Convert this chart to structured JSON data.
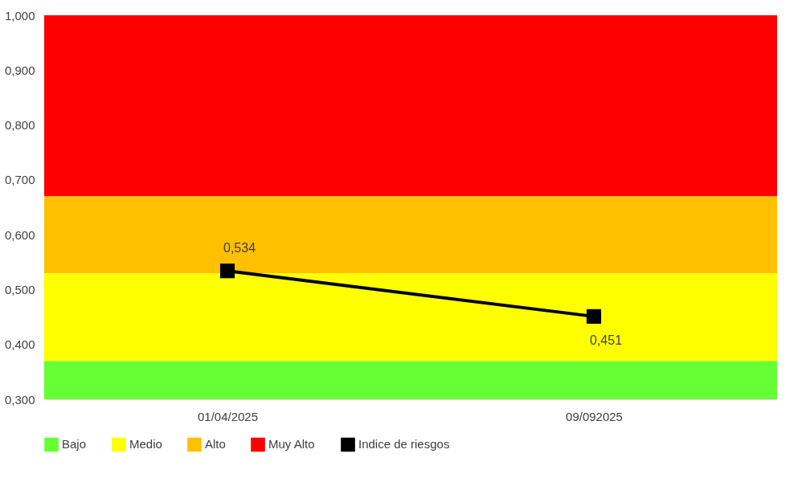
{
  "chart_data": {
    "type": "line",
    "categories": [
      "01/04/2025",
      "09/092025"
    ],
    "ylim": [
      0.3,
      1.0
    ],
    "yticks": [
      {
        "value": 0.3,
        "label": "0,300"
      },
      {
        "value": 0.4,
        "label": "0,400"
      },
      {
        "value": 0.5,
        "label": "0,500"
      },
      {
        "value": 0.6,
        "label": "0,600"
      },
      {
        "value": 0.7,
        "label": "0,700"
      },
      {
        "value": 0.8,
        "label": "0,800"
      },
      {
        "value": 0.9,
        "label": "0,900"
      },
      {
        "value": 1.0,
        "label": "1,000"
      }
    ],
    "bands": [
      {
        "axis": "y",
        "from": 0.3,
        "to": 0.37,
        "label": "Bajo",
        "color": "#66ff33"
      },
      {
        "axis": "y",
        "from": 0.37,
        "to": 0.53,
        "label": "Medio",
        "color": "#ffff00"
      },
      {
        "axis": "y",
        "from": 0.53,
        "to": 0.67,
        "label": "Alto",
        "color": "#ffc000"
      },
      {
        "axis": "y",
        "from": 0.67,
        "to": 1.0,
        "label": "Muy Alto",
        "color": "#ff0000"
      }
    ],
    "series": [
      {
        "name": "Indice de riesgos",
        "color": "#000000",
        "values": [
          0.534,
          0.451
        ],
        "value_labels": [
          "0,534",
          "0,451"
        ]
      }
    ],
    "marker": "square",
    "grid": false,
    "legend": "bottom"
  }
}
